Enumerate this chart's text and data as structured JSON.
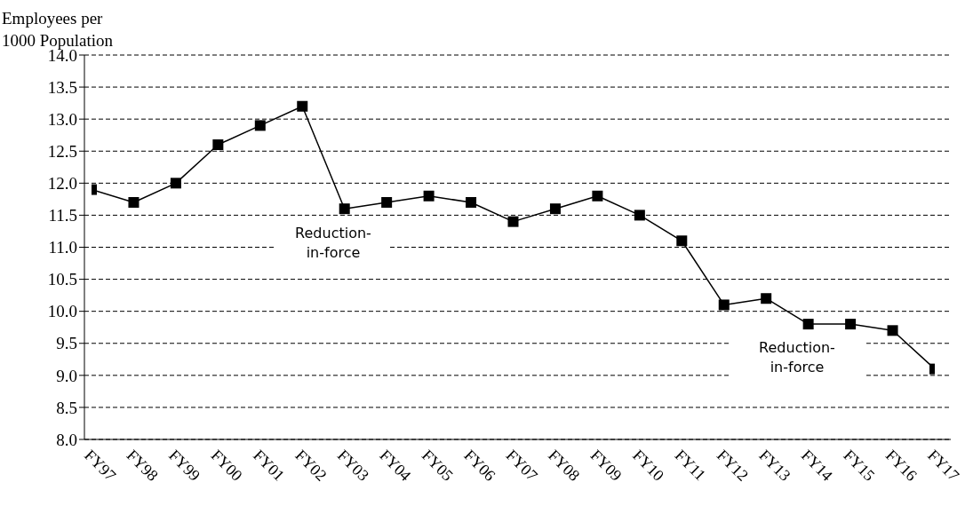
{
  "chart_data": {
    "type": "line",
    "ylabel": "Employees per 1000 Population",
    "categories": [
      "FY97",
      "FY98",
      "FY99",
      "FY00",
      "FY01",
      "FY02",
      "FY03",
      "FY04",
      "FY05",
      "FY06",
      "FY07",
      "FY08",
      "FY09",
      "FY10",
      "FY11",
      "FY12",
      "FY13",
      "FY14",
      "FY15",
      "FY16",
      "FY17"
    ],
    "series": [
      {
        "color": "#000000",
        "values": [
          11.9,
          11.7,
          12.0,
          12.6,
          12.9,
          13.2,
          11.6,
          11.7,
          11.8,
          11.7,
          11.4,
          11.6,
          11.8,
          11.5,
          11.1,
          10.1,
          10.2,
          9.8,
          9.8,
          9.7,
          9.1
        ]
      }
    ],
    "ylim": [
      8,
      14
    ],
    "yticks": [
      {
        "value": 8,
        "label": "8.0"
      },
      {
        "value": 8.5,
        "label": "8.5"
      },
      {
        "value": 9,
        "label": "9.0"
      },
      {
        "value": 9.5,
        "label": "9.5"
      },
      {
        "value": 10,
        "label": "10.0"
      },
      {
        "value": 10.5,
        "label": "10.5"
      },
      {
        "value": 11,
        "label": "11.0"
      },
      {
        "value": 11.5,
        "label": "11.5"
      },
      {
        "value": 12,
        "label": "12.0"
      },
      {
        "value": 12.5,
        "label": "12.5"
      },
      {
        "value": 13,
        "label": "13.0"
      },
      {
        "value": 13.5,
        "label": "13.5"
      },
      {
        "value": 14,
        "label": "14.0"
      }
    ],
    "grid": "y",
    "marker": "square",
    "line_style": "solid",
    "annotations": [
      "Reduction-in-force",
      "Reduction-in-force"
    ]
  }
}
